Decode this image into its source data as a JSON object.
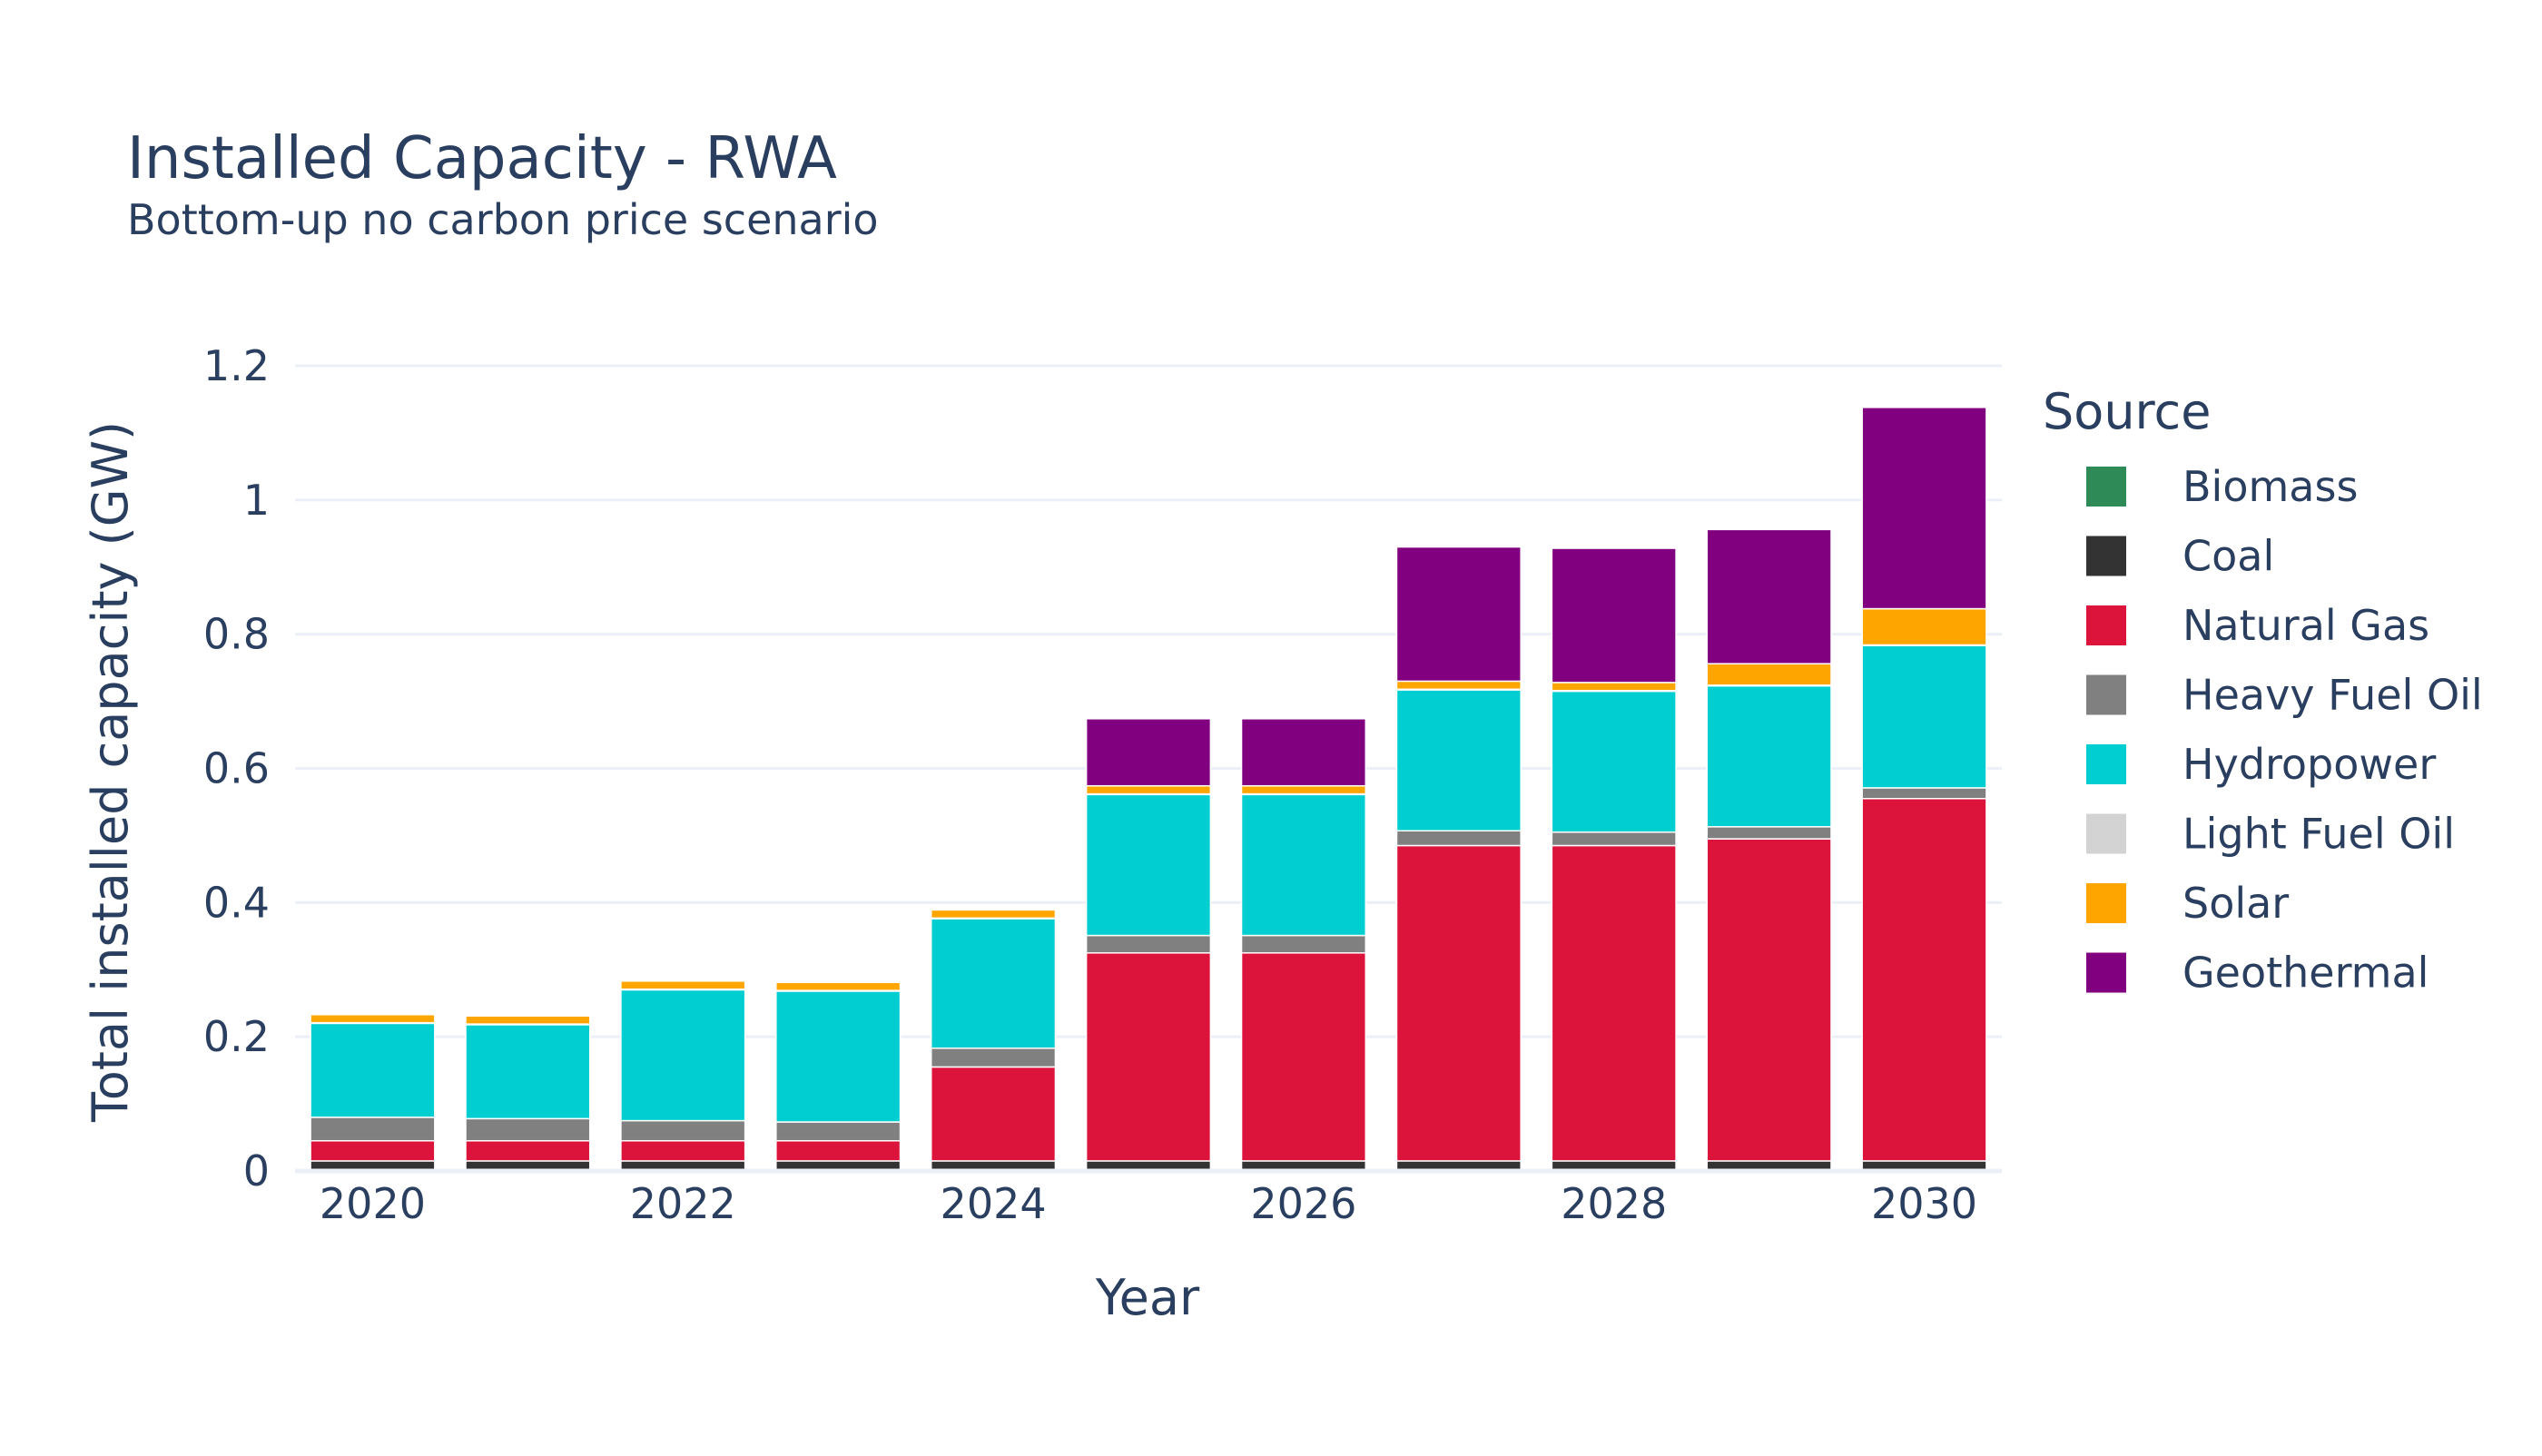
{
  "chart_data": {
    "type": "bar",
    "stacked": true,
    "title": "Installed Capacity - RWA",
    "subtitle": "Bottom-up no carbon price scenario",
    "xlabel": "Year",
    "ylabel": "Total installed capacity (GW)",
    "ylim": [
      0,
      1.2
    ],
    "yticks": [
      0,
      0.2,
      0.4,
      0.6,
      0.8,
      1,
      1.2
    ],
    "ytick_labels": [
      "0",
      "0.2",
      "0.4",
      "0.6",
      "0.8",
      "1",
      "1.2"
    ],
    "xticks": [
      2020,
      2022,
      2024,
      2026,
      2028,
      2030
    ],
    "xtick_labels": [
      "2020",
      "2022",
      "2024",
      "2026",
      "2028",
      "2030"
    ],
    "grid": true,
    "legend_title": "Source",
    "legend_position": "right",
    "categories": [
      2020,
      2021,
      2022,
      2023,
      2024,
      2025,
      2026,
      2027,
      2028,
      2029,
      2030
    ],
    "series": [
      {
        "name": "Biomass",
        "color": "#2e8b57",
        "values": [
          0,
          0,
          0,
          0,
          0,
          0,
          0,
          0,
          0,
          0,
          0
        ]
      },
      {
        "name": "Coal",
        "color": "#333333",
        "values": [
          0.015,
          0.015,
          0.015,
          0.015,
          0.015,
          0.015,
          0.015,
          0.015,
          0.015,
          0.015,
          0.015
        ]
      },
      {
        "name": "Natural Gas",
        "color": "#dc143c",
        "values": [
          0.03,
          0.03,
          0.03,
          0.03,
          0.14,
          0.31,
          0.31,
          0.47,
          0.47,
          0.48,
          0.54
        ]
      },
      {
        "name": "Heavy Fuel Oil",
        "color": "#808080",
        "values": [
          0.035,
          0.033,
          0.03,
          0.028,
          0.028,
          0.026,
          0.026,
          0.022,
          0.02,
          0.018,
          0.016
        ]
      },
      {
        "name": "Hydropower",
        "color": "#00ced1",
        "values": [
          0.14,
          0.14,
          0.195,
          0.195,
          0.193,
          0.21,
          0.21,
          0.21,
          0.21,
          0.21,
          0.212
        ]
      },
      {
        "name": "Light Fuel Oil",
        "color": "#d3d3d3",
        "values": [
          0.001,
          0.001,
          0.001,
          0.001,
          0.001,
          0.001,
          0.001,
          0.001,
          0.001,
          0.001,
          0.001
        ]
      },
      {
        "name": "Solar",
        "color": "#ffa500",
        "values": [
          0.012,
          0.012,
          0.012,
          0.012,
          0.012,
          0.012,
          0.012,
          0.012,
          0.012,
          0.032,
          0.054
        ]
      },
      {
        "name": "Geothermal",
        "color": "#800080",
        "values": [
          0,
          0,
          0,
          0,
          0,
          0.1,
          0.1,
          0.2,
          0.2,
          0.2,
          0.3
        ]
      }
    ]
  }
}
